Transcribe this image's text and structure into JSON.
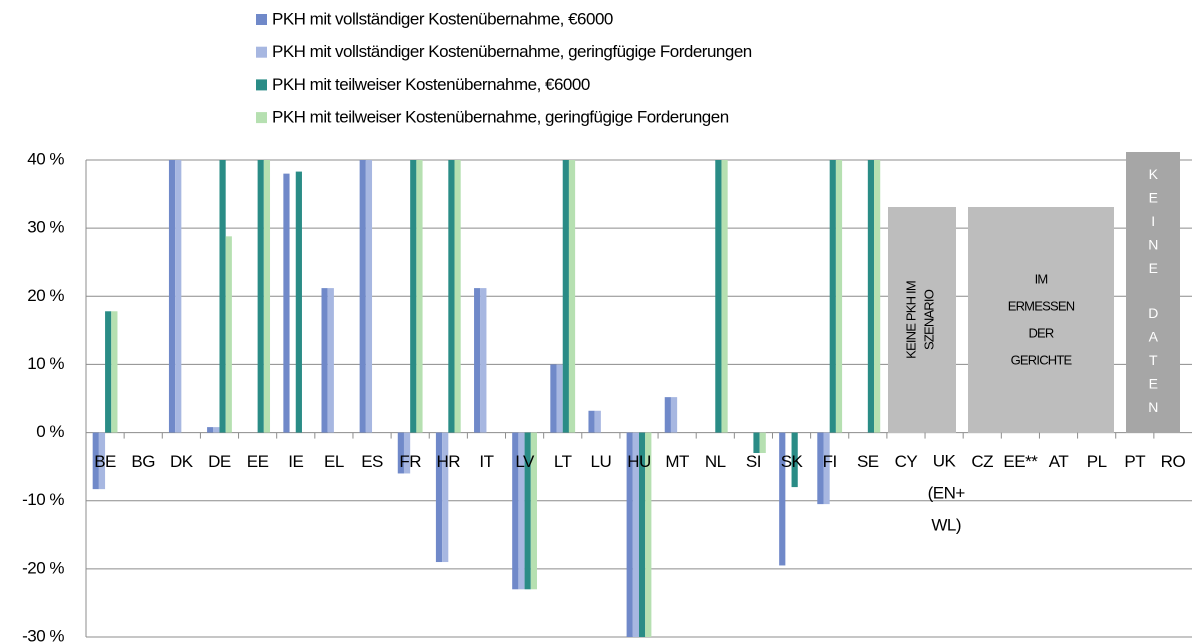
{
  "chart_data": {
    "type": "bar",
    "categories": [
      "BE",
      "BG",
      "DK",
      "DE",
      "EE",
      "IE",
      "EL",
      "ES",
      "FR",
      "HR",
      "IT",
      "LV",
      "LT",
      "LU",
      "HU",
      "MT",
      "NL",
      "SI",
      "SK",
      "FI",
      "SE",
      "CY",
      "UK (EN+ WL)",
      "CZ",
      "EE**",
      "AT",
      "PL",
      "PT",
      "RO"
    ],
    "series": [
      {
        "name": "PKH mit vollständiger Kostenübernahme, €6000",
        "color": "#7089c9",
        "values": [
          -8.3,
          null,
          40,
          0.8,
          null,
          38,
          21.2,
          40,
          -6,
          -19,
          21.2,
          -23,
          10,
          3.2,
          -30,
          5.2,
          null,
          null,
          -19.5,
          -10.5,
          null,
          null,
          null,
          null,
          null,
          null,
          null,
          null,
          null
        ]
      },
      {
        "name": "PKH mit vollständiger Kostenübernahme, geringfügige Forderungen",
        "color": "#a7b7e1",
        "values": [
          -8.3,
          null,
          40,
          0.8,
          null,
          null,
          21.2,
          40,
          -6,
          -19,
          21.2,
          -23,
          10,
          3.2,
          -30,
          5.2,
          null,
          null,
          null,
          -10.5,
          null,
          null,
          null,
          null,
          null,
          null,
          null,
          null,
          null
        ]
      },
      {
        "name": "PKH mit teilweiser Kostenübernahme, €6000",
        "color": "#2a8c86",
        "values": [
          17.8,
          null,
          null,
          40,
          40,
          38.3,
          null,
          null,
          40,
          40,
          null,
          -23,
          40,
          null,
          -30,
          null,
          40,
          -3,
          -8,
          40,
          40,
          null,
          null,
          null,
          null,
          null,
          null,
          null,
          null
        ]
      },
      {
        "name": "PKH mit teilweiser Kostenübernahme, geringfügige Forderungen",
        "color": "#b6e0b1",
        "values": [
          17.8,
          null,
          null,
          28.8,
          40,
          null,
          null,
          null,
          40,
          40,
          null,
          -23,
          40,
          null,
          -30,
          null,
          40,
          -3,
          null,
          40,
          40,
          null,
          null,
          null,
          null,
          null,
          null,
          null,
          null
        ]
      }
    ],
    "ylim": [
      -30,
      40
    ],
    "yticks": [
      {
        "value": -30,
        "label": "-30 %"
      },
      {
        "value": -20,
        "label": "-20 %"
      },
      {
        "value": -10,
        "label": "-10 %"
      },
      {
        "value": 0,
        "label": "0 %"
      },
      {
        "value": 10,
        "label": "10 %"
      },
      {
        "value": 20,
        "label": "20 %"
      },
      {
        "value": 30,
        "label": "30 %"
      },
      {
        "value": 40,
        "label": "40 %"
      }
    ],
    "grid": true,
    "annotations": [
      {
        "lines": [
          "KEINE PKH IM",
          "SZENARIO"
        ]
      },
      {
        "lines": [
          "IM",
          "ERMESSEN",
          "DER",
          "GERICHTE"
        ]
      },
      {
        "lines": [
          "KEINE",
          "DATEN"
        ]
      }
    ]
  }
}
